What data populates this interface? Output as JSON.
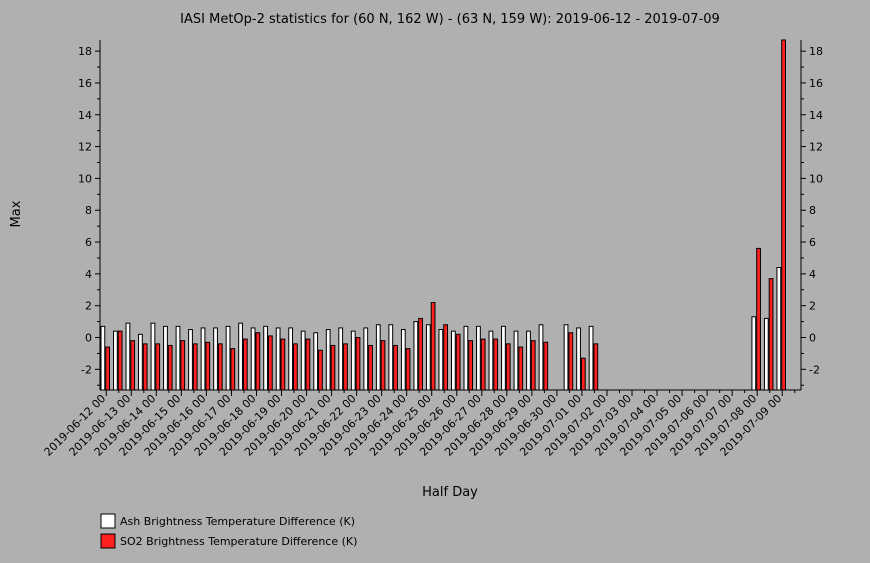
{
  "chart_data": {
    "type": "bar",
    "title": "IASI MetOp-2 statistics for (60 N, 162 W) - (63 N, 159 W): 2019-06-12 - 2019-07-09",
    "xlabel": "Half Day",
    "ylabel": "Max",
    "ylim": [
      -3.3,
      18.7
    ],
    "yticks": [
      -2,
      0,
      2,
      4,
      6,
      8,
      10,
      12,
      14,
      16,
      18
    ],
    "categories": [
      "2019-06-12 00",
      "2019-06-12 12",
      "2019-06-13 00",
      "2019-06-13 12",
      "2019-06-14 00",
      "2019-06-14 12",
      "2019-06-15 00",
      "2019-06-15 12",
      "2019-06-16 00",
      "2019-06-16 12",
      "2019-06-17 00",
      "2019-06-17 12",
      "2019-06-18 00",
      "2019-06-18 12",
      "2019-06-19 00",
      "2019-06-19 12",
      "2019-06-20 00",
      "2019-06-20 12",
      "2019-06-21 00",
      "2019-06-21 12",
      "2019-06-22 00",
      "2019-06-22 12",
      "2019-06-23 00",
      "2019-06-23 12",
      "2019-06-24 00",
      "2019-06-24 12",
      "2019-06-25 00",
      "2019-06-25 12",
      "2019-06-26 00",
      "2019-06-26 12",
      "2019-06-27 00",
      "2019-06-27 12",
      "2019-06-28 00",
      "2019-06-28 12",
      "2019-06-29 00",
      "2019-06-29 12",
      "2019-06-30 00",
      "2019-06-30 12",
      "2019-07-01 00",
      "2019-07-01 12",
      "2019-07-02 00",
      "2019-07-02 12",
      "2019-07-03 00",
      "2019-07-03 12",
      "2019-07-04 00",
      "2019-07-04 12",
      "2019-07-05 00",
      "2019-07-05 12",
      "2019-07-06 00",
      "2019-07-06 12",
      "2019-07-07 00",
      "2019-07-07 12",
      "2019-07-08 00",
      "2019-07-08 12",
      "2019-07-09 00",
      "2019-07-09 12"
    ],
    "tick_labels": [
      "2019-06-12 00",
      "2019-06-13 00",
      "2019-06-14 00",
      "2019-06-15 00",
      "2019-06-16 00",
      "2019-06-17 00",
      "2019-06-18 00",
      "2019-06-19 00",
      "2019-06-20 00",
      "2019-06-21 00",
      "2019-06-22 00",
      "2019-06-23 00",
      "2019-06-24 00",
      "2019-06-25 00",
      "2019-06-26 00",
      "2019-06-27 00",
      "2019-06-28 00",
      "2019-06-29 00",
      "2019-06-30 00",
      "2019-07-01 00",
      "2019-07-02 00",
      "2019-07-03 00",
      "2019-07-04 00",
      "2019-07-05 00",
      "2019-07-06 00",
      "2019-07-07 00",
      "2019-07-08 00",
      "2019-07-09 00"
    ],
    "series": [
      {
        "name": "Ash Brightness Temperature Difference (K)",
        "color": "#ffffff",
        "values": [
          0.7,
          0.4,
          0.9,
          0.2,
          0.9,
          0.7,
          0.7,
          0.5,
          0.6,
          0.6,
          0.7,
          0.9,
          0.6,
          0.7,
          0.6,
          0.6,
          0.4,
          0.3,
          0.5,
          0.6,
          0.4,
          0.6,
          0.8,
          0.8,
          0.5,
          1.0,
          0.8,
          0.5,
          0.4,
          0.7,
          0.7,
          0.4,
          0.7,
          0.4,
          0.4,
          0.8,
          null,
          0.8,
          0.6,
          0.7,
          null,
          null,
          null,
          null,
          null,
          null,
          null,
          null,
          null,
          null,
          null,
          null,
          1.3,
          1.2,
          4.4,
          null
        ]
      },
      {
        "name": "SO2 Brightness Temperature Difference (K)",
        "color": "#ff2020",
        "values": [
          -0.6,
          0.4,
          -0.2,
          -0.4,
          -0.4,
          -0.5,
          -0.2,
          -0.4,
          -0.3,
          -0.4,
          -0.7,
          -0.1,
          0.3,
          0.1,
          -0.1,
          -0.4,
          -0.1,
          -0.8,
          -0.5,
          -0.4,
          0.0,
          -0.5,
          -0.2,
          -0.5,
          -0.7,
          1.2,
          2.2,
          0.8,
          0.2,
          -0.2,
          -0.1,
          -0.1,
          -0.4,
          -0.6,
          -0.2,
          -0.3,
          null,
          0.3,
          -1.3,
          -0.4,
          null,
          null,
          null,
          null,
          null,
          null,
          null,
          null,
          null,
          null,
          null,
          null,
          5.6,
          3.7,
          18.7,
          null
        ]
      }
    ],
    "legend_placement": "bottom-left"
  }
}
